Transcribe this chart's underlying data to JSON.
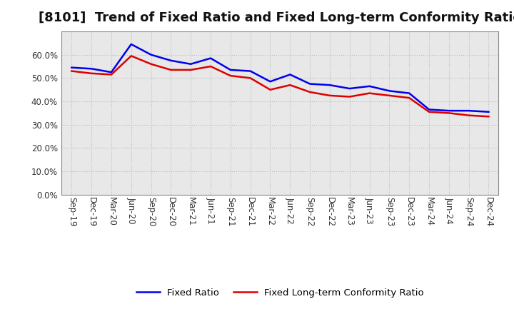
{
  "title": "[8101]  Trend of Fixed Ratio and Fixed Long-term Conformity Ratio",
  "x_labels": [
    "Sep-19",
    "Dec-19",
    "Mar-20",
    "Jun-20",
    "Sep-20",
    "Dec-20",
    "Mar-21",
    "Jun-21",
    "Sep-21",
    "Dec-21",
    "Mar-22",
    "Jun-22",
    "Sep-22",
    "Dec-22",
    "Mar-23",
    "Jun-23",
    "Sep-23",
    "Dec-23",
    "Mar-24",
    "Jun-24",
    "Sep-24",
    "Dec-24"
  ],
  "fixed_ratio": [
    54.5,
    54.0,
    52.5,
    64.5,
    60.0,
    57.5,
    56.0,
    58.5,
    53.5,
    53.0,
    48.5,
    51.5,
    47.5,
    47.0,
    45.5,
    46.5,
    44.5,
    43.5,
    36.5,
    36.0,
    36.0,
    35.5
  ],
  "fixed_lt_ratio": [
    53.0,
    52.0,
    51.5,
    59.5,
    56.0,
    53.5,
    53.5,
    55.0,
    51.0,
    50.0,
    45.0,
    47.0,
    44.0,
    42.5,
    42.0,
    43.5,
    42.5,
    41.5,
    35.5,
    35.0,
    34.0,
    33.5
  ],
  "fixed_ratio_color": "#0000EE",
  "fixed_lt_ratio_color": "#DD0000",
  "ylim": [
    0,
    70
  ],
  "yticks": [
    0,
    10,
    20,
    30,
    40,
    50,
    60
  ],
  "background_color": "#FFFFFF",
  "plot_bg_color": "#DCDCDC",
  "grid_color": "#FFFFFF",
  "title_fontsize": 13,
  "tick_fontsize": 8.5,
  "legend_labels": [
    "Fixed Ratio",
    "Fixed Long-term Conformity Ratio"
  ]
}
